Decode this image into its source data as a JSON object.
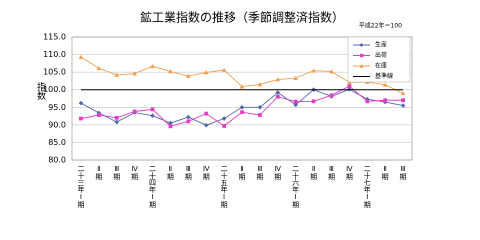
{
  "chart_data": {
    "type": "line",
    "title": "鉱工業指数の推移（季節調整済指数）",
    "subtitle": "平成22年＝100",
    "y_label": "指数",
    "categories": [
      "二十三年Ⅰ期",
      "Ⅱ期",
      "Ⅲ期",
      "Ⅳ期",
      "二十四年Ⅰ期",
      "Ⅱ期",
      "Ⅲ期",
      "Ⅳ期",
      "二十五年Ⅰ期",
      "Ⅱ期",
      "Ⅲ期",
      "Ⅳ期",
      "二十六年Ⅰ期",
      "Ⅱ期",
      "Ⅲ期",
      "Ⅳ期",
      "二十七年Ⅰ期",
      "Ⅱ期",
      "Ⅲ期"
    ],
    "series": [
      {
        "name": "生産",
        "color": "#5468a8",
        "marker": "diamond",
        "values": [
          96.2,
          93.4,
          90.8,
          93.5,
          92.6,
          90.5,
          92.2,
          89.9,
          91.8,
          95.0,
          95.0,
          99.2,
          95.7,
          100.0,
          98.1,
          100.1,
          97.3,
          96.5,
          95.5
        ]
      },
      {
        "name": "出荷",
        "color": "#e040c8",
        "marker": "square",
        "values": [
          91.8,
          92.8,
          92.0,
          93.8,
          94.4,
          89.6,
          91.0,
          93.2,
          89.7,
          93.6,
          92.8,
          98.0,
          96.6,
          96.7,
          98.4,
          101.0,
          96.7,
          97.0,
          97.0
        ]
      },
      {
        "name": "在庫",
        "color": "#f0a050",
        "marker": "triangle",
        "values": [
          109.3,
          106.1,
          104.2,
          104.6,
          106.7,
          105.2,
          103.9,
          104.9,
          105.6,
          100.9,
          101.5,
          102.9,
          103.3,
          105.4,
          105.2,
          102.1,
          102.2,
          101.4,
          99.0
        ]
      },
      {
        "name": "基準線",
        "color": "#000000",
        "marker": "none",
        "values": [
          100,
          100,
          100,
          100,
          100,
          100,
          100,
          100,
          100,
          100,
          100,
          100,
          100,
          100,
          100,
          100,
          100,
          100,
          100
        ]
      }
    ],
    "ylim": [
      80,
      115
    ],
    "yticks": [
      {
        "value": 80,
        "label": "80.0"
      },
      {
        "value": 85,
        "label": "85.0"
      },
      {
        "value": 90,
        "label": "90.0"
      },
      {
        "value": 95,
        "label": "95.0"
      },
      {
        "value": 100,
        "label": "100.0"
      },
      {
        "value": 105,
        "label": "105.0"
      },
      {
        "value": 110,
        "label": "110.0"
      },
      {
        "value": 115,
        "label": "115.0"
      }
    ],
    "grid": true
  }
}
